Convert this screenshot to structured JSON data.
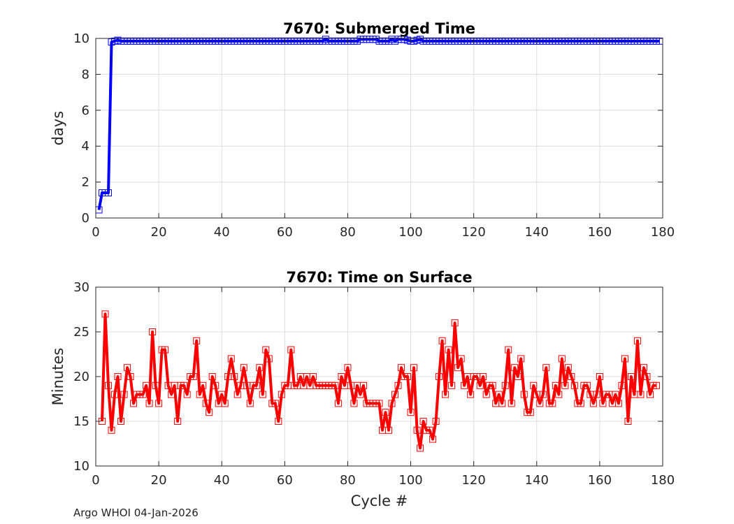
{
  "footer": "Argo WHOI 04-Jan-2026",
  "chart_data": [
    {
      "type": "line",
      "title": "7670: Submerged Time",
      "xlabel": "",
      "ylabel": "days",
      "xlim": [
        0,
        180
      ],
      "ylim": [
        0,
        10
      ],
      "xticks": [
        0,
        20,
        40,
        60,
        80,
        100,
        120,
        140,
        160,
        180
      ],
      "yticks": [
        0,
        2,
        4,
        6,
        8,
        10
      ],
      "grid": true,
      "color": "#0000ff",
      "marker": "square",
      "series": [
        {
          "name": "Submerged Time",
          "x_start": 1,
          "x_step": 1,
          "values": [
            0.45,
            1.4,
            1.4,
            1.4,
            9.8,
            9.85,
            9.9,
            9.85,
            9.85,
            9.85,
            9.85,
            9.85,
            9.85,
            9.85,
            9.85,
            9.85,
            9.85,
            9.85,
            9.85,
            9.85,
            9.85,
            9.85,
            9.85,
            9.85,
            9.85,
            9.85,
            9.85,
            9.85,
            9.85,
            9.85,
            9.85,
            9.85,
            9.85,
            9.85,
            9.85,
            9.85,
            9.85,
            9.85,
            9.85,
            9.85,
            9.85,
            9.85,
            9.85,
            9.85,
            9.85,
            9.85,
            9.85,
            9.85,
            9.85,
            9.85,
            9.85,
            9.85,
            9.85,
            9.85,
            9.85,
            9.85,
            9.85,
            9.85,
            9.85,
            9.85,
            9.85,
            9.85,
            9.85,
            9.85,
            9.85,
            9.85,
            9.85,
            9.85,
            9.85,
            9.85,
            9.85,
            9.85,
            9.95,
            9.85,
            9.85,
            9.85,
            9.85,
            9.85,
            9.85,
            9.85,
            9.85,
            9.85,
            9.85,
            9.95,
            9.95,
            9.95,
            9.95,
            9.95,
            9.95,
            9.85,
            9.85,
            9.85,
            9.85,
            9.95,
            9.85,
            9.95,
            9.95,
            9.95,
            9.9,
            9.85,
            9.85,
            9.9,
            9.95,
            9.85,
            9.85,
            9.85,
            9.85,
            9.85,
            9.85,
            9.85,
            9.85,
            9.85,
            9.85,
            9.85,
            9.85,
            9.85,
            9.85,
            9.85,
            9.85,
            9.85,
            9.85,
            9.85,
            9.85,
            9.85,
            9.85,
            9.85,
            9.85,
            9.85,
            9.85,
            9.85,
            9.85,
            9.85,
            9.85,
            9.85,
            9.85,
            9.85,
            9.85,
            9.85,
            9.85,
            9.85,
            9.85,
            9.85,
            9.85,
            9.85,
            9.85,
            9.85,
            9.85,
            9.85,
            9.85,
            9.85,
            9.85,
            9.85,
            9.85,
            9.85,
            9.85,
            9.85,
            9.85,
            9.85,
            9.85,
            9.85,
            9.85,
            9.85,
            9.85,
            9.85,
            9.85,
            9.85,
            9.85,
            9.85,
            9.85,
            9.85,
            9.85,
            9.85,
            9.85,
            9.85,
            9.85,
            9.85,
            9.85,
            9.85,
            9.85
          ]
        }
      ]
    },
    {
      "type": "line",
      "title": "7670: Time on Surface",
      "xlabel": "Cycle #",
      "ylabel": "Minutes",
      "xlim": [
        0,
        180
      ],
      "ylim": [
        10,
        30
      ],
      "xticks": [
        0,
        20,
        40,
        60,
        80,
        100,
        120,
        140,
        160,
        180
      ],
      "yticks": [
        10,
        15,
        20,
        25,
        30
      ],
      "grid": true,
      "color": "#ff0000",
      "marker": "square",
      "series": [
        {
          "name": "Time on Surface",
          "x_start": 2,
          "x_step": 1,
          "values": [
            15,
            27,
            19,
            14,
            18,
            20,
            15,
            18,
            21,
            20,
            17,
            18,
            18,
            18,
            19,
            17,
            25,
            19,
            17,
            23,
            23,
            19,
            18,
            19,
            15,
            19,
            19,
            18,
            20,
            20,
            24,
            18,
            19,
            17,
            16,
            20,
            19,
            17,
            18,
            17,
            20,
            22,
            20,
            18,
            19,
            21,
            19,
            17,
            19,
            19,
            21,
            18,
            23,
            22,
            17,
            17,
            15,
            18,
            19,
            19,
            23,
            19,
            19,
            20,
            19,
            20,
            19,
            20,
            19,
            19,
            19,
            19,
            19,
            19,
            19,
            17,
            20,
            19,
            21,
            19,
            17,
            19,
            18,
            19,
            17,
            17,
            17,
            17,
            17,
            14,
            16,
            14,
            17,
            18,
            19,
            21,
            20,
            20,
            16,
            21,
            14,
            12,
            15,
            14,
            14,
            13,
            15,
            20,
            24,
            18,
            23,
            19,
            26,
            21,
            22,
            19,
            20,
            18,
            20,
            20,
            19,
            20,
            18,
            19,
            19,
            17,
            18,
            17,
            19,
            23,
            17,
            21,
            20,
            22,
            18,
            16,
            16,
            19,
            18,
            17,
            18,
            21,
            17,
            17,
            19,
            18,
            22,
            19,
            21,
            20,
            19,
            17,
            17,
            19,
            19,
            18,
            17,
            18,
            20,
            17,
            18,
            18,
            17,
            18,
            17,
            19,
            22,
            15,
            20,
            18,
            24,
            18,
            21,
            20,
            18,
            19,
            19
          ]
        }
      ]
    }
  ]
}
